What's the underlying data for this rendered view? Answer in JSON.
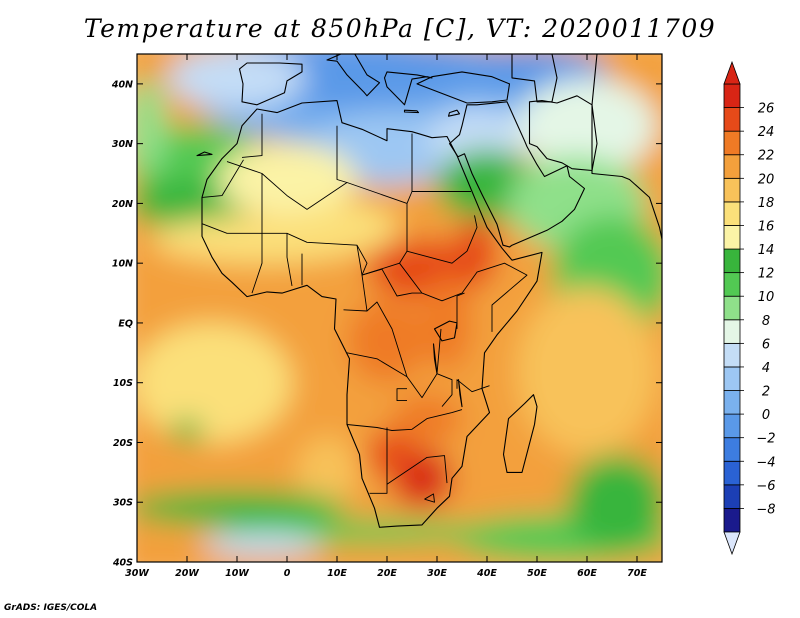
{
  "title": "Temperature at 850hPa [C], VT: 2020011709",
  "credit": "GrADS: IGES/COLA",
  "chart_data": {
    "type": "heatmap",
    "variable": "Temperature at 850hPa",
    "units": "C",
    "valid_time": "2020011709",
    "lon_range": [
      -30,
      75
    ],
    "lat_range": [
      -40,
      45
    ],
    "lon_ticks": [
      "30W",
      "20W",
      "10W",
      "0",
      "10E",
      "20E",
      "30E",
      "40E",
      "50E",
      "60E",
      "70E"
    ],
    "lat_ticks": [
      "40S",
      "30S",
      "20S",
      "10S",
      "EQ",
      "10N",
      "20N",
      "30N",
      "40N"
    ],
    "colorbar": {
      "levels": [
        "-8",
        "-6",
        "-4",
        "-2",
        "0",
        "2",
        "4",
        "6",
        "8",
        "10",
        "12",
        "14",
        "16",
        "18",
        "20",
        "22",
        "24",
        "26"
      ],
      "colors": [
        "#1a1a8c",
        "#1c3fb5",
        "#2a62d4",
        "#3d7de0",
        "#5a99e8",
        "#7ab1ee",
        "#9dc7f3",
        "#c4ddf6",
        "#e4f6e6",
        "#8fe08a",
        "#52c953",
        "#38b53c",
        "#fbf3a6",
        "#fbe07a",
        "#f8c25a",
        "#f3a03c",
        "#ef7a25",
        "#e64a19",
        "#d82515"
      ],
      "over_color": "#d82515",
      "under_color": "#dbe6fb"
    }
  }
}
